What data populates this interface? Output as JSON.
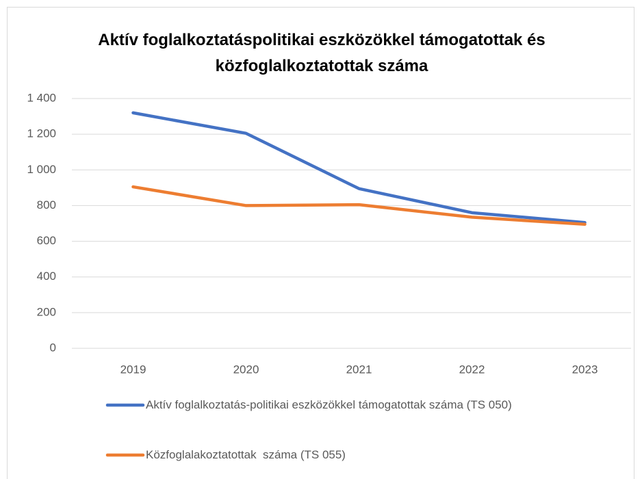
{
  "chart_data": {
    "type": "line",
    "title": "Aktív foglalkoztatáspolitikai eszközökkel támogatottak és közfoglalkoztatottak száma",
    "categories": [
      "2019",
      "2020",
      "2021",
      "2022",
      "2023"
    ],
    "series": [
      {
        "name": "Aktív foglalkoztatás-politikai eszközökkel támogatottak száma (TS 050)",
        "color": "#4472c4",
        "values": [
          1320,
          1205,
          895,
          760,
          705
        ]
      },
      {
        "name": "Közfoglalakoztatottak  száma (TS 055)",
        "color": "#ed7d31",
        "values": [
          905,
          800,
          805,
          735,
          695
        ]
      }
    ],
    "ylim": [
      0,
      1400
    ],
    "yticks": [
      0,
      200,
      400,
      600,
      800,
      {
        "value": 1000,
        "label": "1 000"
      },
      {
        "value": 1200,
        "label": "1 200"
      },
      {
        "value": 1400,
        "label": "1 400"
      }
    ],
    "grid": true,
    "legend": "bottom"
  }
}
